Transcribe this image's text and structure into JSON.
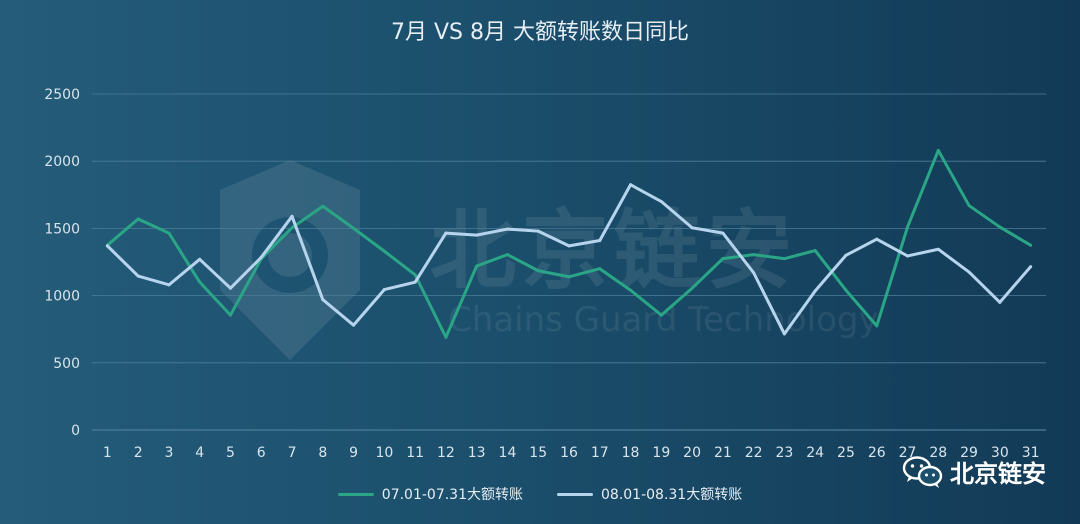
{
  "title": "7月 VS 8月 大额转账数日同比",
  "watermark": {
    "main": "北京链安",
    "sub": "Chains Guard Technology"
  },
  "brand": {
    "name": "北京链安",
    "icon": "wechat-icon"
  },
  "colors": {
    "series1": "#2aa586",
    "series2": "#b7d4ee",
    "grid": "#4d7d98",
    "axis_text": "#d8e4ec"
  },
  "chart_data": {
    "type": "line",
    "title": "7月 VS 8月 大额转账数日同比",
    "x": [
      "1",
      "2",
      "3",
      "4",
      "5",
      "6",
      "7",
      "8",
      "9",
      "10",
      "11",
      "12",
      "13",
      "14",
      "15",
      "16",
      "17",
      "18",
      "19",
      "20",
      "21",
      "22",
      "23",
      "24",
      "25",
      "26",
      "27",
      "28",
      "29",
      "30",
      "31"
    ],
    "yticks": [
      0,
      500,
      1000,
      1500,
      2000,
      2500
    ],
    "ylim": [
      0,
      2500
    ],
    "grid": true,
    "legend_position": "bottom",
    "series": [
      {
        "name": "07.01-07.31大额转账",
        "values": [
          1375,
          1570,
          1465,
          1100,
          855,
          1275,
          1505,
          1665,
          1500,
          1330,
          1155,
          690,
          1220,
          1305,
          1185,
          1140,
          1200,
          1040,
          855,
          1055,
          1275,
          1305,
          1275,
          1335,
          1040,
          775,
          1510,
          2080,
          1670,
          1510,
          1375
        ]
      },
      {
        "name": "08.01-08.31大额转账",
        "values": [
          1370,
          1145,
          1080,
          1270,
          1055,
          1285,
          1590,
          970,
          780,
          1045,
          1100,
          1465,
          1450,
          1495,
          1480,
          1370,
          1410,
          1825,
          1700,
          1505,
          1465,
          1170,
          715,
          1035,
          1300,
          1420,
          1295,
          1345,
          1175,
          950,
          1215
        ]
      }
    ]
  }
}
